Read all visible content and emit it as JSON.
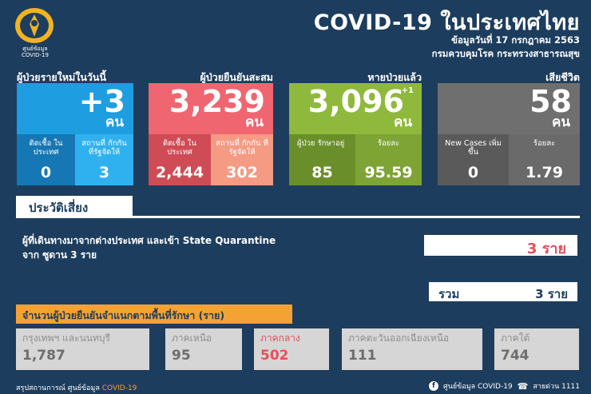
{
  "header": {
    "logo_caption_line1": "ศูนย์ข้อมูล",
    "logo_caption_line2": "COVID-19",
    "title": "COVID-19 ในประเทศไทย",
    "date_line": "ข้อมูลวันที่ 17 กรกฎาคม 2563",
    "org_line": "กรมควบคุมโรค กระทรวงสาธารณสุข"
  },
  "cards": {
    "new_cases": {
      "heading": "ผู้ป่วยรายใหม่ในวันนี้",
      "value": "+3",
      "unit": "คน",
      "color": "#1e9ee0",
      "sub": [
        {
          "label": "ติดเชื้อ ในประเทศ",
          "value": "0"
        },
        {
          "label": "สถานที่ กักกัน ที่รัฐจัดให้",
          "value": "3"
        }
      ]
    },
    "confirmed": {
      "heading": "ผู้ป่วยยืนยันสะสม",
      "value": "3,239",
      "unit": "คน",
      "color": "#ef6670",
      "sub": [
        {
          "label": "ติดเชื้อ ในประเทศ",
          "value": "2,444"
        },
        {
          "label": "สถานที่ กักกัน ที่รัฐจัดให้",
          "value": "302"
        }
      ]
    },
    "recovered": {
      "heading": "หายป่วยแล้ว",
      "value": "3,096",
      "increment": "+1",
      "unit": "คน",
      "color": "#8fb93c",
      "sub": [
        {
          "label": "ผู้ป่วย รักษาอยู่",
          "value": "85"
        },
        {
          "label": "ร้อยละ",
          "value": "95.59"
        }
      ]
    },
    "deaths": {
      "heading": "เสียชีวิต",
      "value": "58",
      "unit": "คน",
      "color": "#6f6f6f",
      "sub": [
        {
          "label": "New Cases เพิ่มขึ้น",
          "value": "0"
        },
        {
          "label": "ร้อยละ",
          "value": "1.79"
        }
      ]
    }
  },
  "risk": {
    "tab_label": "ประวัติเสี่ยง",
    "line1": "ผู้ที่เดินทางมาจากต่างประเทศ และเข้า State Quarantine",
    "line2": "จาก ซูดาน 3 ราย",
    "count": "3 ราย",
    "total_label": "รวม",
    "total_value": "3 ราย"
  },
  "regions": {
    "title": "จำนวนผู้ป่วยยืนยันจำแนกตามพื้นที่รักษา (ราย)",
    "items": [
      {
        "label": "กรุงเทพฯ และนนทบุรี",
        "value": "1,787"
      },
      {
        "label": "ภาคเหนือ",
        "value": "95"
      },
      {
        "label": "ภาคกลาง",
        "value": "502"
      },
      {
        "label": "ภาคตะวันออกเฉียงเหนือ",
        "value": "111"
      },
      {
        "label": "ภาคใต้",
        "value": "744"
      }
    ]
  },
  "footer": {
    "left_text": "สรุปสถานการณ์ ศูนย์ข้อมูล ",
    "left_accent": "COVID-19",
    "facebook_text": "ศูนย์ข้อมูล COVID-19",
    "hotline_text": "สายด่วน 1111",
    "facebook_icon": "facebook-icon",
    "phone_icon": "phone-icon"
  }
}
